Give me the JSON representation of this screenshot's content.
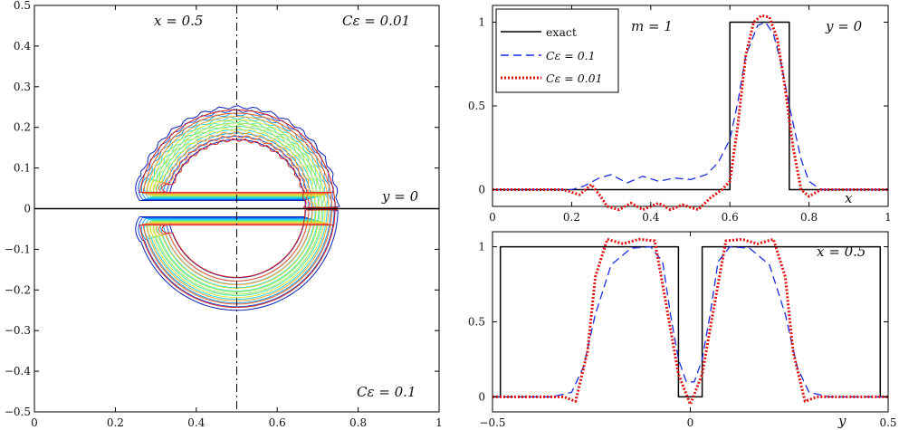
{
  "colors": {
    "contour_scale": [
      "#0a1fb8",
      "#1c5de8",
      "#1aa0f0",
      "#22d4e6",
      "#4de8b0",
      "#9be860",
      "#e6e33a",
      "#f5a52a",
      "#f0602a",
      "#d8201c"
    ],
    "exact": "#000000",
    "c01": "#1a2ee0",
    "c001": "#e01010",
    "dashdot": "#000000"
  },
  "chart_data": [
    {
      "type": "contour",
      "xlim": [
        0,
        1
      ],
      "ylim": [
        -0.5,
        0.5
      ],
      "xticks": [
        "0",
        "0.2",
        "0.4",
        "0.6",
        "0.8",
        "1"
      ],
      "yticks": [
        "0.5",
        "0.4",
        "0.3",
        "0.2",
        "0.1",
        "0",
        "−0.1",
        "−0.2",
        "−0.3",
        "−0.4",
        "−0.5"
      ],
      "annotations": {
        "top_left": "x = 0.5",
        "top_right": "Cε = 0.01",
        "center_right": "y = 0",
        "bottom_right": "Cε = 0.1"
      },
      "levels": 10,
      "shape": {
        "center_x": 0.5,
        "outer_radius": 0.25,
        "inner_radius": 0.17,
        "slot_y_half": [
          0.02,
          0.08
        ],
        "slot_left_x": 0.26
      }
    },
    {
      "type": "line",
      "xlim": [
        0,
        1
      ],
      "ylim": [
        -0.1,
        1.1
      ],
      "xticks": [
        "0",
        "0.2",
        "0.4",
        "0.6",
        "0.8",
        "1"
      ],
      "yticks": [
        "0",
        "0.5",
        "1"
      ],
      "xlabel": "x",
      "annotations": {
        "center": "m = 1",
        "right": "y = 0"
      },
      "legend": {
        "placement": "top-left",
        "entries": [
          "exact",
          "Cε = 0.1",
          "Cε = 0.01"
        ]
      },
      "series": [
        {
          "name": "exact",
          "values": [
            [
              0,
              0
            ],
            [
              0.6,
              0
            ],
            [
              0.6,
              1
            ],
            [
              0.75,
              1
            ],
            [
              0.75,
              0
            ],
            [
              1,
              0
            ]
          ]
        },
        {
          "name": "Cε = 0.1",
          "values": [
            [
              0,
              0
            ],
            [
              0.2,
              0
            ],
            [
              0.23,
              0.02
            ],
            [
              0.27,
              0.07
            ],
            [
              0.3,
              0.09
            ],
            [
              0.34,
              0.04
            ],
            [
              0.38,
              0.08
            ],
            [
              0.42,
              0.05
            ],
            [
              0.46,
              0.07
            ],
            [
              0.5,
              0.06
            ],
            [
              0.54,
              0.09
            ],
            [
              0.57,
              0.16
            ],
            [
              0.6,
              0.3
            ],
            [
              0.62,
              0.52
            ],
            [
              0.64,
              0.8
            ],
            [
              0.67,
              0.98
            ],
            [
              0.69,
              1.0
            ],
            [
              0.71,
              0.93
            ],
            [
              0.73,
              0.75
            ],
            [
              0.75,
              0.5
            ],
            [
              0.78,
              0.18
            ],
            [
              0.8,
              0.05
            ],
            [
              0.83,
              0
            ],
            [
              1,
              0
            ]
          ]
        },
        {
          "name": "Cε = 0.01",
          "values": [
            [
              0,
              0
            ],
            [
              0.18,
              0
            ],
            [
              0.22,
              -0.03
            ],
            [
              0.25,
              0.03
            ],
            [
              0.27,
              -0.03
            ],
            [
              0.29,
              -0.1
            ],
            [
              0.32,
              -0.12
            ],
            [
              0.35,
              -0.08
            ],
            [
              0.38,
              -0.12
            ],
            [
              0.42,
              -0.08
            ],
            [
              0.45,
              -0.12
            ],
            [
              0.48,
              -0.09
            ],
            [
              0.52,
              -0.12
            ],
            [
              0.55,
              -0.05
            ],
            [
              0.58,
              0
            ],
            [
              0.6,
              0.05
            ],
            [
              0.62,
              0.38
            ],
            [
              0.64,
              0.8
            ],
            [
              0.66,
              1.0
            ],
            [
              0.68,
              1.04
            ],
            [
              0.7,
              1.03
            ],
            [
              0.72,
              0.9
            ],
            [
              0.74,
              0.6
            ],
            [
              0.76,
              0.25
            ],
            [
              0.78,
              0.0
            ],
            [
              0.8,
              -0.04
            ],
            [
              0.83,
              0
            ],
            [
              1,
              0
            ]
          ]
        }
      ]
    },
    {
      "type": "line",
      "xlim": [
        -0.5,
        0.5
      ],
      "ylim": [
        -0.1,
        1.1
      ],
      "xticks": [
        "−0.5",
        "0",
        "0.5"
      ],
      "yticks": [
        "0",
        "0.5",
        "1"
      ],
      "xlabel": "y",
      "annotations": {
        "right": "x = 0.5"
      },
      "series": [
        {
          "name": "exact",
          "values": [
            [
              -0.5,
              0
            ],
            [
              -0.48,
              0
            ],
            [
              -0.48,
              1
            ],
            [
              -0.03,
              1
            ],
            [
              -0.03,
              0
            ],
            [
              0.03,
              0
            ],
            [
              0.03,
              1
            ],
            [
              0.48,
              1
            ],
            [
              0.48,
              0
            ],
            [
              0.5,
              0
            ]
          ]
        },
        {
          "name": "Cε = 0.1",
          "values": [
            [
              -0.5,
              0
            ],
            [
              -0.35,
              0
            ],
            [
              -0.3,
              0.03
            ],
            [
              -0.27,
              0.2
            ],
            [
              -0.24,
              0.55
            ],
            [
              -0.2,
              0.88
            ],
            [
              -0.15,
              0.99
            ],
            [
              -0.1,
              1.0
            ],
            [
              -0.07,
              0.9
            ],
            [
              -0.05,
              0.55
            ],
            [
              -0.03,
              0.25
            ],
            [
              -0.01,
              0.1
            ],
            [
              0.01,
              0.1
            ],
            [
              0.03,
              0.25
            ],
            [
              0.05,
              0.55
            ],
            [
              0.07,
              0.9
            ],
            [
              0.1,
              1.0
            ],
            [
              0.15,
              0.99
            ],
            [
              0.2,
              0.88
            ],
            [
              0.24,
              0.55
            ],
            [
              0.27,
              0.2
            ],
            [
              0.3,
              0.03
            ],
            [
              0.35,
              0
            ],
            [
              0.5,
              0
            ]
          ]
        },
        {
          "name": "Cε = 0.01",
          "values": [
            [
              -0.5,
              0
            ],
            [
              -0.32,
              0
            ],
            [
              -0.29,
              -0.03
            ],
            [
              -0.26,
              0.3
            ],
            [
              -0.24,
              0.8
            ],
            [
              -0.21,
              1.05
            ],
            [
              -0.17,
              1.02
            ],
            [
              -0.13,
              1.05
            ],
            [
              -0.09,
              1.04
            ],
            [
              -0.06,
              0.6
            ],
            [
              -0.03,
              0.15
            ],
            [
              0,
              -0.05
            ],
            [
              0.03,
              0.15
            ],
            [
              0.06,
              0.6
            ],
            [
              0.09,
              1.04
            ],
            [
              0.13,
              1.05
            ],
            [
              0.17,
              1.02
            ],
            [
              0.21,
              1.05
            ],
            [
              0.24,
              0.8
            ],
            [
              0.26,
              0.3
            ],
            [
              0.29,
              -0.03
            ],
            [
              0.32,
              0
            ],
            [
              0.5,
              0
            ]
          ]
        }
      ]
    }
  ]
}
